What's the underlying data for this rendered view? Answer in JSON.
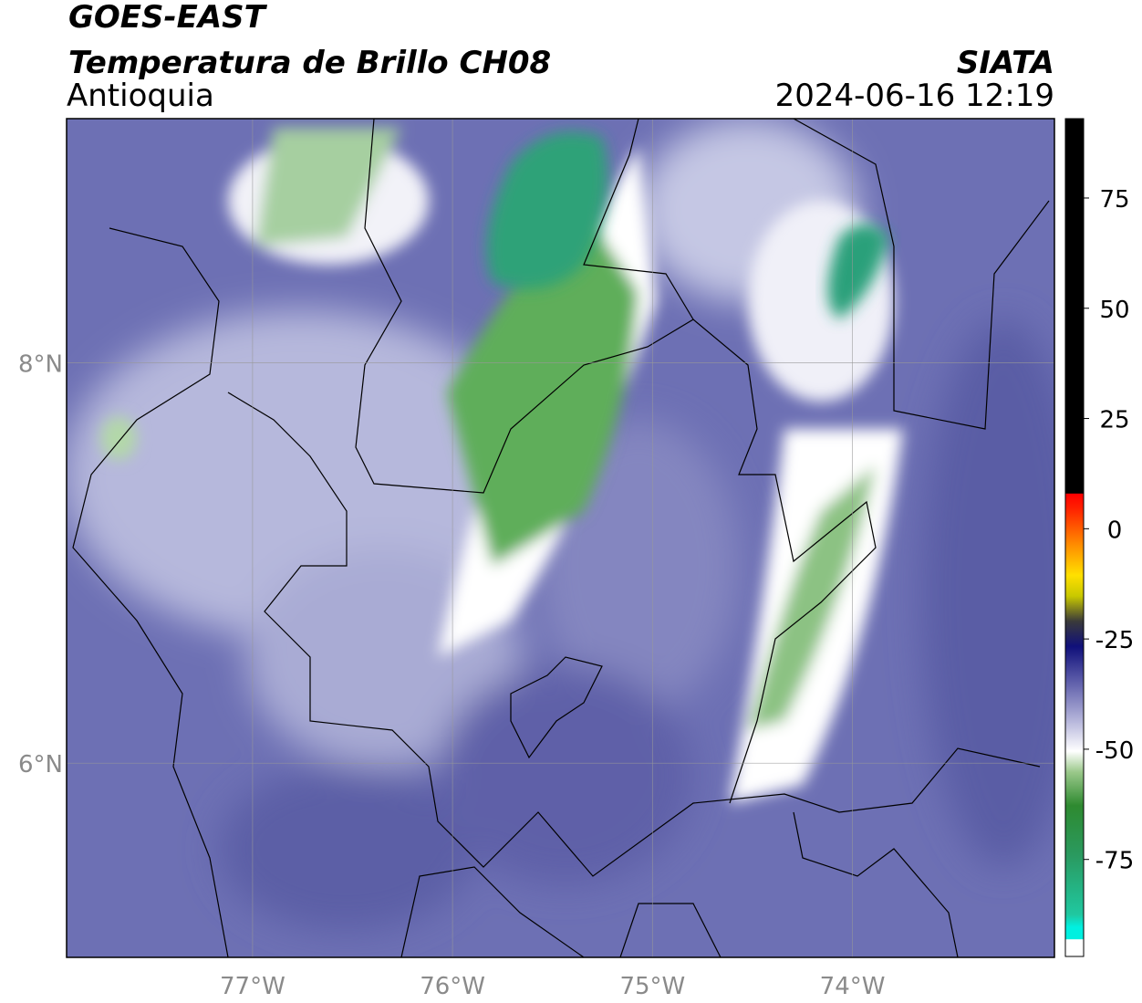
{
  "header": {
    "satellite": "GOES-EAST",
    "product": "Temperatura de Brillo CH08",
    "region": "Antioquia",
    "source": "SIATA",
    "datetime": "2024-06-16 12:19"
  },
  "map": {
    "xlim": [
      -77.93,
      -72.99
    ],
    "ylim": [
      5.03,
      9.22
    ],
    "xticks": [
      {
        "value": -77,
        "label": "77°W"
      },
      {
        "value": -76,
        "label": "76°W"
      },
      {
        "value": -75,
        "label": "75°W"
      },
      {
        "value": -74,
        "label": "74°W"
      }
    ],
    "yticks": [
      {
        "value": 8,
        "label": "8°N"
      },
      {
        "value": 6,
        "label": "6°N"
      }
    ],
    "grid": true
  },
  "colorbar": {
    "lim": [
      -97,
      93
    ],
    "ticks": [
      75,
      50,
      25,
      0,
      -25,
      -50,
      -75
    ]
  }
}
